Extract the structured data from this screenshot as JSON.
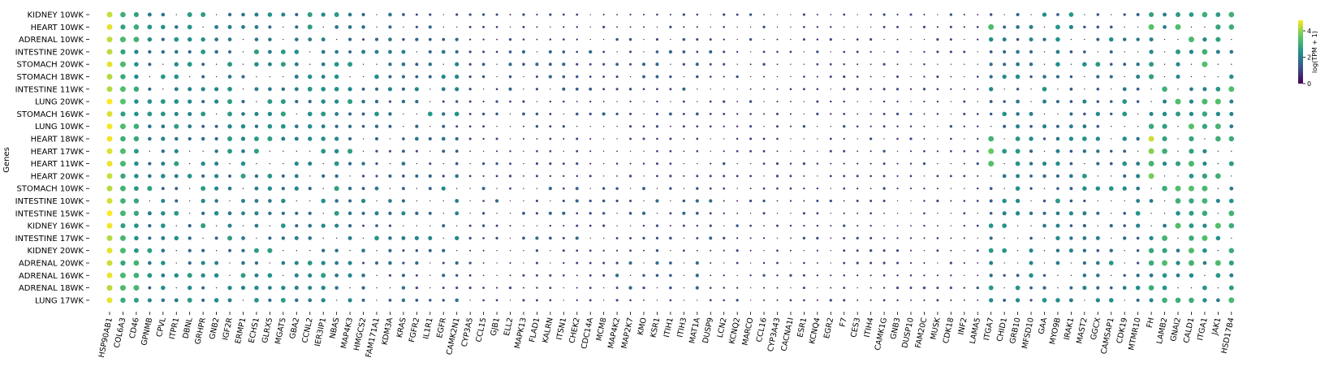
{
  "chart_data": {
    "type": "dot-heatmap",
    "ylabel": "Genes",
    "colorbar": {
      "label": "log(TPM + 1)",
      "ticks": [
        "0",
        "2",
        "4"
      ],
      "min": 0,
      "max": 4.8,
      "colormap": "viridis"
    },
    "rows": [
      "KIDNEY 10WK",
      "HEART 10WK",
      "ADRENAL 10WK",
      "INTESTINE 20WK",
      "STOMACH 20WK",
      "STOMACH 18WK",
      "INTESTINE 11WK",
      "LUNG 20WK",
      "STOMACH 16WK",
      "LUNG 10WK",
      "HEART 18WK",
      "HEART 17WK",
      "HEART 11WK",
      "HEART 20WK",
      "STOMACH 10WK",
      "INTESTINE 10WK",
      "INTESTINE 15WK",
      "KIDNEY 16WK",
      "INTESTINE 17WK",
      "KIDNEY 20WK",
      "ADRENAL 20WK",
      "ADRENAL 16WK",
      "ADRENAL 18WK",
      "LUNG 17WK"
    ],
    "columns": [
      "HSP90AB1",
      "COL6A3",
      "CD46",
      "GPNMB",
      "CPVL",
      "ITPR1",
      "DBNL",
      "GRHPR",
      "GNB2",
      "IGF2R",
      "ERMP1",
      "ECHS1",
      "GLRX5",
      "MGAT5",
      "GBA2",
      "CCNL2",
      "IER3IP1",
      "NBAS",
      "MAP4K3",
      "HMGCS2",
      "FAM171A1",
      "KDM3A",
      "KRAS",
      "FGFR2",
      "IL1R1",
      "EGFR",
      "CAMK2N1",
      "CYP3A5",
      "CCL15",
      "GJB1",
      "ELL2",
      "MAPK13",
      "FLAD1",
      "KALRN",
      "ITSN1",
      "CHEK2",
      "CDC14A",
      "MCM8",
      "MAP4K2",
      "MAP2K7",
      "KMO",
      "KSR1",
      "ITIH1",
      "ITIH3",
      "MAT1A",
      "DUSP9",
      "LCN2",
      "KCNQ2",
      "MARCO",
      "CCL16",
      "CYP3A43",
      "CACNA1I",
      "ESR1",
      "KCNQ4",
      "EGR2",
      "F7",
      "CES3",
      "ITIH4",
      "CAMK1G",
      "GNB3",
      "DUSP10",
      "FAM20C",
      "MUSK",
      "CDK18",
      "INF2",
      "LAMA5",
      "ITGA7",
      "CHID1",
      "GRB10",
      "MFSD10",
      "GAA",
      "MYO9B",
      "IRAK1",
      "MAST2",
      "GGCX",
      "CAMSAP1",
      "CDK19",
      "MTMR10",
      "FH",
      "LAMB2",
      "GNAI2",
      "CALD1",
      "ITGA1",
      "JAK1",
      "HSD17B4"
    ]
  }
}
